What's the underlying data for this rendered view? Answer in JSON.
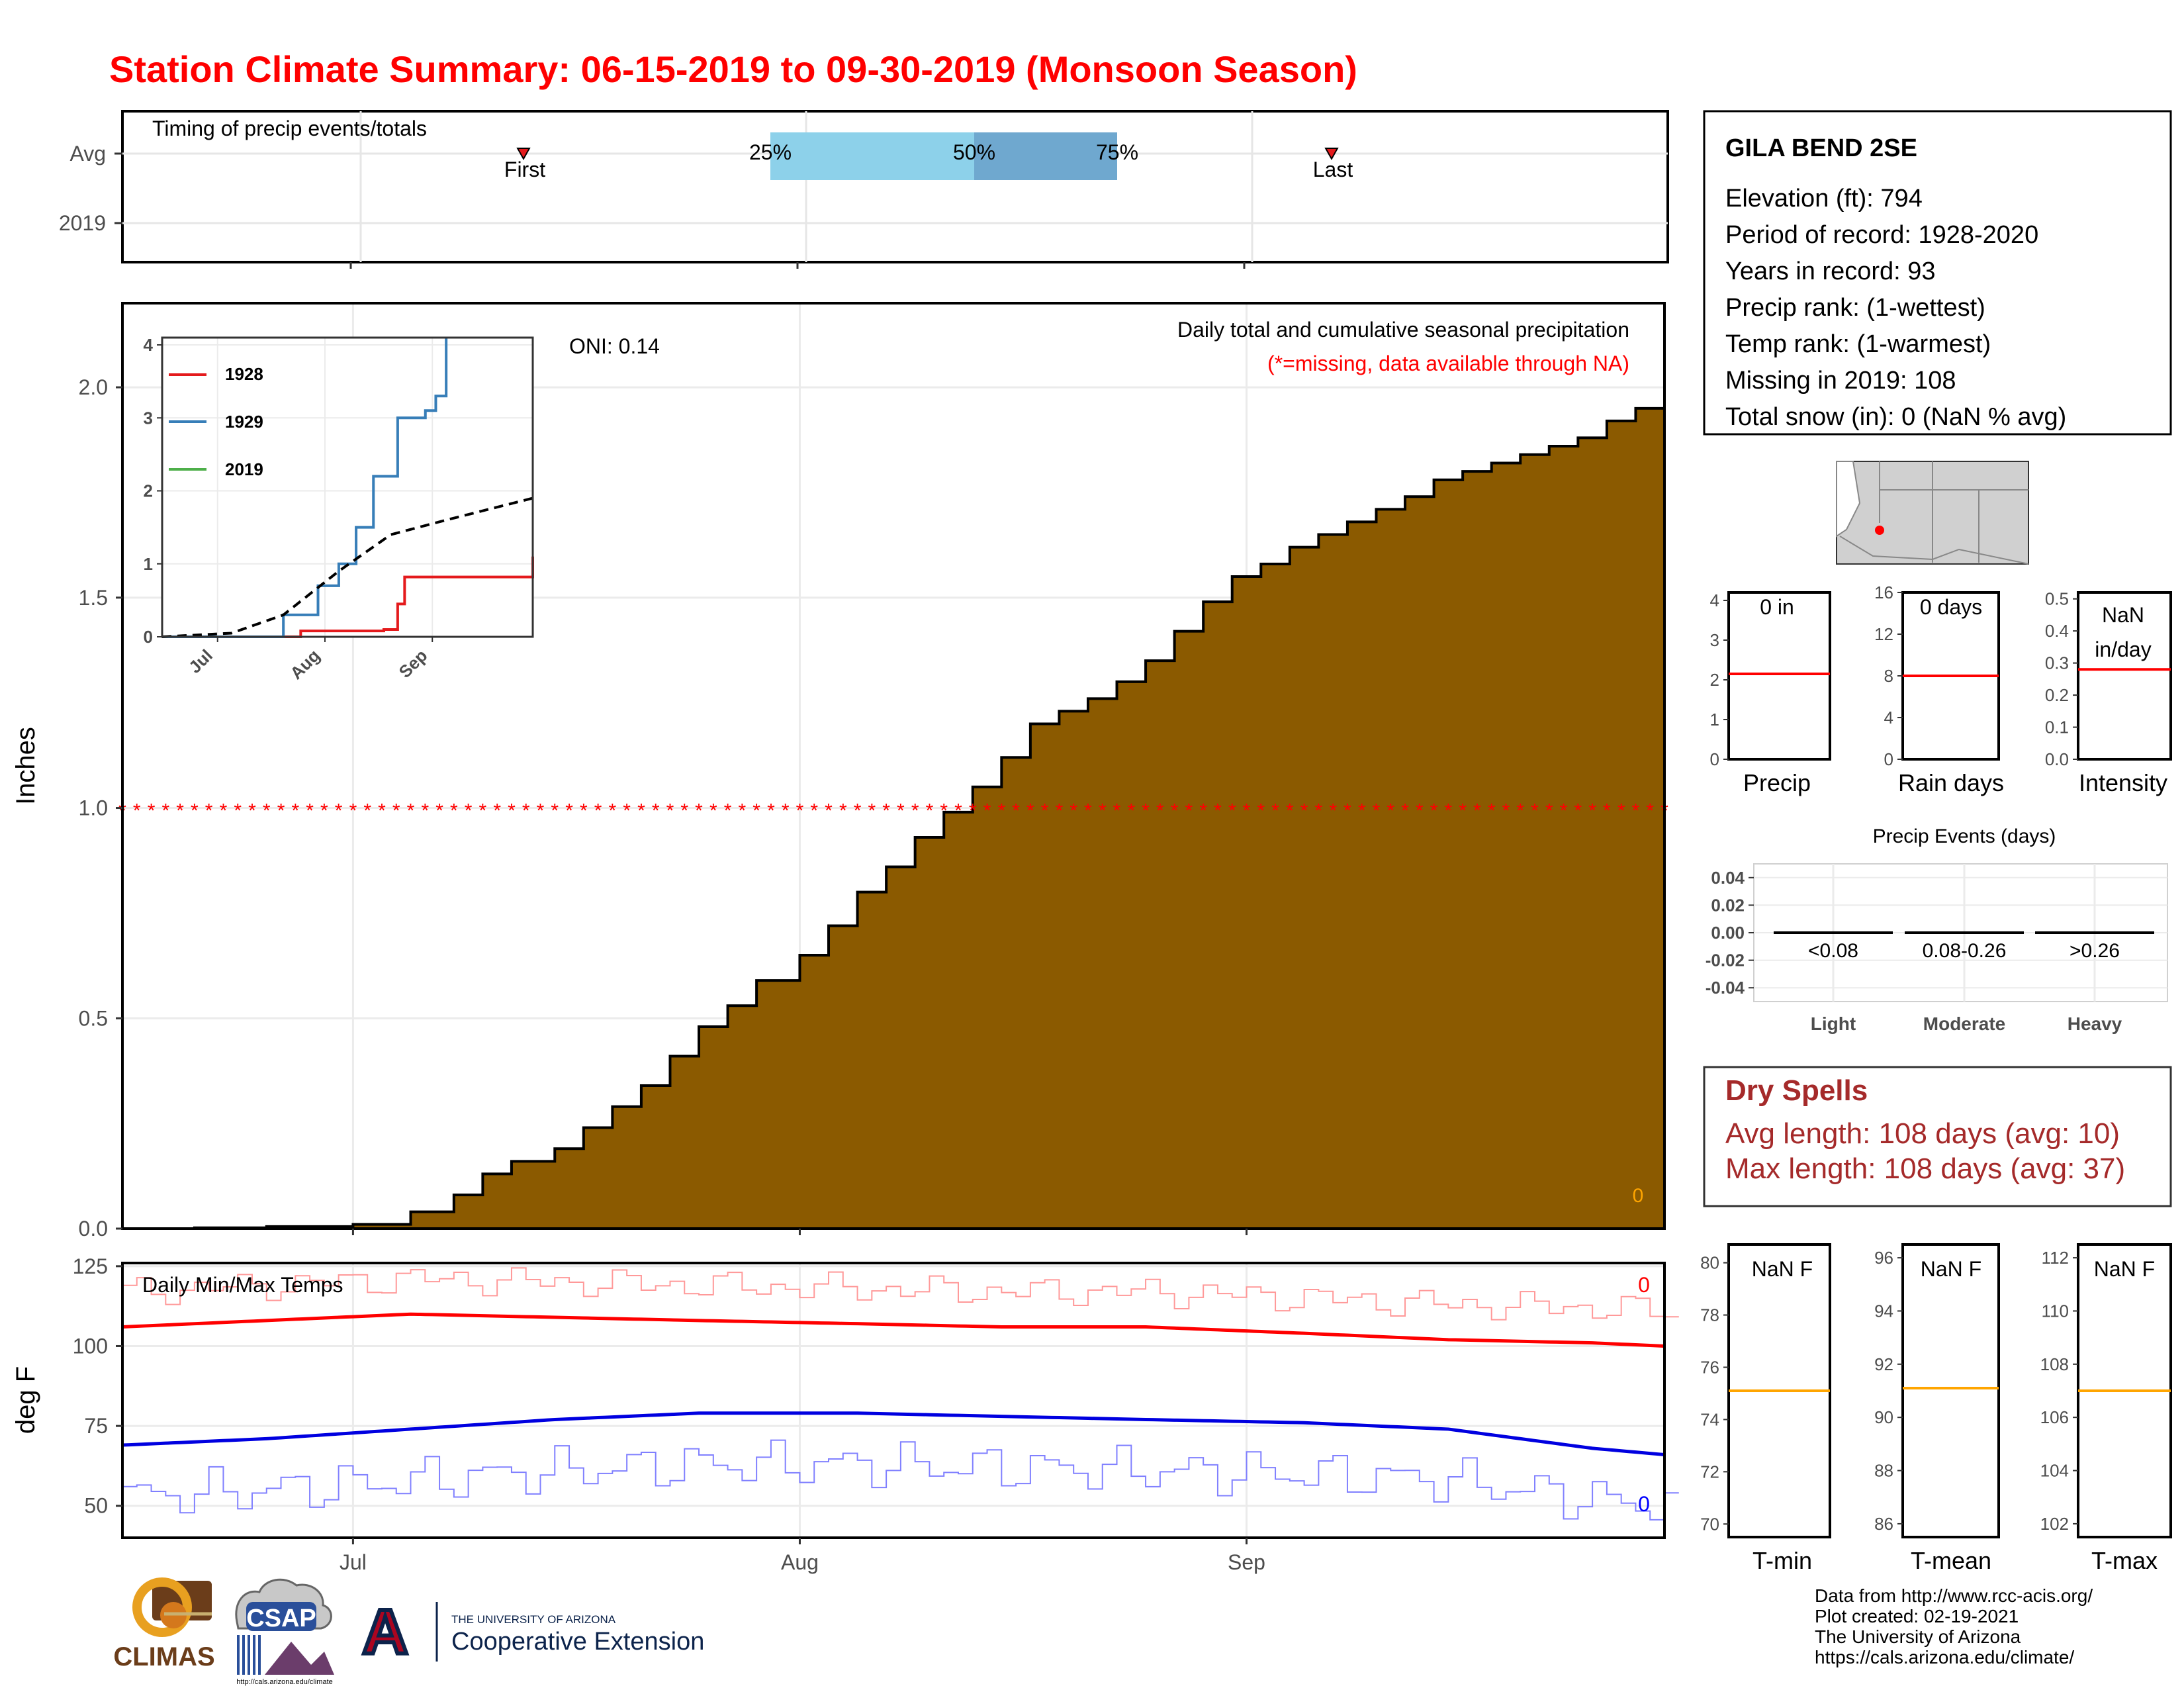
{
  "title": "Station Climate Summary: 06-15-2019 to 09-30-2019 (Monsoon Season)",
  "timing": {
    "label": "Timing of precip events/totals",
    "rows": [
      "Avg",
      "2019"
    ],
    "first_label": "First",
    "last_label": "Last",
    "pct_labels": [
      "25%",
      "50%",
      "75%"
    ]
  },
  "station": {
    "name": "GILA BEND 2SE",
    "lines": [
      "Elevation (ft): 794",
      "Period of record: 1928-2020",
      "Years in record: 93",
      "Precip rank:  (1-wettest)",
      "Temp rank:  (1-warmest)",
      "Missing in 2019: 108",
      "Total snow (in): 0 (NaN % avg)"
    ]
  },
  "main": {
    "ylabel": "Inches",
    "header": "Daily total and cumulative seasonal precipitation",
    "missing_note": "(*=missing, data available through NA)",
    "oni": "ONI: 0.14",
    "corner_value": "0",
    "month_labels": [
      "Jul",
      "Aug",
      "Sep"
    ]
  },
  "inset": {
    "legend": [
      "1928",
      "1929",
      "2019"
    ],
    "colors": [
      "#e41a1c",
      "#377eb8",
      "#4daf4a"
    ],
    "month_labels": [
      "Jul",
      "Aug",
      "Sep"
    ]
  },
  "temps": {
    "ylabel": "deg F",
    "label": "Daily Min/Max Temps",
    "max_count": "0",
    "min_count": "0"
  },
  "gauges": {
    "precip": {
      "value_label": "0 in",
      "name": "Precip"
    },
    "rain_days": {
      "value_label": "0 days",
      "name": "Rain days"
    },
    "intensity": {
      "value_label1": "NaN",
      "value_label2": "in/day",
      "name": "Intensity"
    }
  },
  "events": {
    "title": "Precip Events (days)",
    "categories": [
      "Light",
      "Moderate",
      "Heavy"
    ],
    "ranges": [
      "<0.08",
      "0.08-0.26",
      ">0.26"
    ]
  },
  "dry_spells": {
    "title": "Dry Spells",
    "avg": "Avg length: 108 days (avg: 10)",
    "max": "Max length: 108 days (avg: 37)"
  },
  "temp_gauges": {
    "tmin": {
      "value_label": "NaN F",
      "name": "T-min"
    },
    "tmean": {
      "value_label": "NaN F",
      "name": "T-mean"
    },
    "tmax": {
      "value_label": "NaN F",
      "name": "T-max"
    }
  },
  "credits": [
    "Data from http://www.rcc-acis.org/",
    "Plot created: 02-19-2021",
    "The University of Arizona",
    "https://cals.arizona.edu/climate/"
  ],
  "logos": {
    "climas": "CLIMAS",
    "csap": "CSAP",
    "csap_url": "http://cals.arizona.edu/climate",
    "ua_small": "THE UNIVERSITY OF ARIZONA",
    "ua_big": "Cooperative Extension",
    "ua_letter": "A"
  },
  "chart_data": [
    {
      "type": "area",
      "title": "Daily total and cumulative seasonal precipitation",
      "ylabel": "Inches",
      "xlim": [
        "2019-06-15",
        "2019-09-30"
      ],
      "ylim": [
        0,
        2.2
      ],
      "yticks": [
        0.0,
        0.5,
        1.0,
        1.5,
        2.0
      ],
      "ytick_labels": [
        "0.0",
        "0.5",
        "1.0",
        "1.5",
        "2.0"
      ],
      "xtick_labels": [
        "Jul",
        "Aug",
        "Sep"
      ],
      "grid": true,
      "series": [
        {
          "x": [
            "06-15",
            "06-20",
            "06-25",
            "07-01",
            "07-05",
            "07-08",
            "07-10",
            "07-12",
            "07-15",
            "07-17",
            "07-19",
            "07-21",
            "07-23",
            "07-25",
            "07-27",
            "07-29",
            "08-01",
            "08-03",
            "08-05",
            "08-07",
            "08-09",
            "08-11",
            "08-13",
            "08-15",
            "08-17",
            "08-19",
            "08-21",
            "08-23",
            "08-25",
            "08-27",
            "08-29",
            "08-31",
            "09-02",
            "09-04",
            "09-06",
            "09-08",
            "09-10",
            "09-12",
            "09-14",
            "09-16",
            "09-18",
            "09-20",
            "09-22",
            "09-24",
            "09-26",
            "09-28",
            "09-30"
          ],
          "y": [
            0.0,
            0.002,
            0.005,
            0.01,
            0.04,
            0.08,
            0.13,
            0.16,
            0.19,
            0.24,
            0.29,
            0.34,
            0.41,
            0.48,
            0.53,
            0.59,
            0.65,
            0.72,
            0.8,
            0.86,
            0.93,
            0.99,
            1.05,
            1.12,
            1.2,
            1.23,
            1.26,
            1.3,
            1.35,
            1.42,
            1.49,
            1.55,
            1.58,
            1.62,
            1.65,
            1.68,
            1.71,
            1.74,
            1.78,
            1.8,
            1.82,
            1.84,
            1.86,
            1.88,
            1.92,
            1.95,
            1.97
          ]
        },
        {
          "name": "missing",
          "y": 1.0
        }
      ]
    },
    {
      "type": "line",
      "title": "Daily Min/Max Temps",
      "ylabel": "deg F",
      "ylim": [
        40,
        126
      ],
      "yticks": [
        50,
        75,
        100,
        125
      ],
      "xtick_labels": [
        "Jul",
        "Aug",
        "Sep"
      ],
      "series": [
        {
          "x": [
            "06-15",
            "06-25",
            "07-05",
            "07-15",
            "07-25",
            "08-05",
            "08-15",
            "08-25",
            "09-05",
            "09-15",
            "09-25",
            "09-30"
          ],
          "y": [
            106,
            108,
            110,
            109,
            108,
            107,
            106,
            106,
            104,
            102,
            101,
            100
          ]
        },
        {
          "x": [
            "06-15",
            "06-25",
            "07-05",
            "07-15",
            "07-25",
            "08-05",
            "08-15",
            "08-25",
            "09-05",
            "09-15",
            "09-25",
            "09-30"
          ],
          "y": [
            69,
            71,
            74,
            77,
            79,
            79,
            78,
            77,
            76,
            74,
            68,
            66
          ]
        }
      ]
    },
    {
      "type": "line",
      "title": "",
      "xtick_labels": [
        "Jul",
        "Aug",
        "Sep"
      ],
      "ylim": [
        0,
        4.1
      ],
      "yticks": [
        0,
        1,
        2,
        3,
        4
      ],
      "series": [
        {
          "name": "1928",
          "x": [
            "06-15",
            "07-25",
            "08-18",
            "08-22",
            "08-24",
            "09-30"
          ],
          "y": [
            0,
            0.08,
            0.1,
            0.45,
            0.82,
            1.1
          ]
        },
        {
          "name": "1929",
          "x": [
            "06-15",
            "07-10",
            "07-20",
            "07-30",
            "08-05",
            "08-10",
            "08-15",
            "08-22",
            "08-30",
            "09-02",
            "09-05"
          ],
          "y": [
            0,
            0.0,
            0.3,
            0.7,
            1.0,
            1.5,
            2.2,
            3.0,
            3.1,
            3.3,
            4.1
          ]
        },
        {
          "name": "2019",
          "x": [],
          "y": []
        },
        {
          "x": [
            "06-15",
            "07-05",
            "07-20",
            "08-05",
            "08-20",
            "09-05",
            "09-30"
          ],
          "y": [
            0,
            0.05,
            0.3,
            0.9,
            1.4,
            1.6,
            1.9
          ]
        }
      ]
    },
    {
      "type": "bar",
      "title": "Precip Events (days)",
      "categories": [
        "Light",
        "Moderate",
        "Heavy"
      ],
      "values": [
        0,
        0,
        0
      ],
      "ylim": [
        -0.05,
        0.05
      ],
      "yticks": [
        -0.04,
        -0.02,
        0.0,
        0.02,
        0.04
      ],
      "ytick_labels": [
        "-0.04",
        "-0.02",
        "0.00",
        "0.02",
        "0.04"
      ]
    },
    {
      "type": "bar",
      "categories": [
        "Precip",
        "Rain days",
        "Intensity",
        "T-min",
        "T-mean",
        "T-max"
      ],
      "values": [
        null,
        null,
        null,
        null,
        null,
        null
      ],
      "avg_lines": [
        2.15,
        8.0,
        0.28,
        75.1,
        91.1,
        107.0
      ],
      "yranges": [
        [
          0,
          4.2
        ],
        [
          0,
          16
        ],
        [
          0,
          0.52
        ],
        [
          69.5,
          80.7
        ],
        [
          85.5,
          96.5
        ],
        [
          101.5,
          112.5
        ]
      ],
      "yticks": [
        [
          0,
          1,
          2,
          3,
          4
        ],
        [
          0,
          4,
          8,
          12,
          16
        ],
        [
          0.0,
          0.1,
          0.2,
          0.3,
          0.4,
          0.5
        ],
        [
          70,
          72,
          74,
          76,
          78,
          80
        ],
        [
          86,
          88,
          90,
          92,
          94,
          96
        ],
        [
          102,
          104,
          106,
          108,
          110,
          112
        ]
      ]
    }
  ]
}
